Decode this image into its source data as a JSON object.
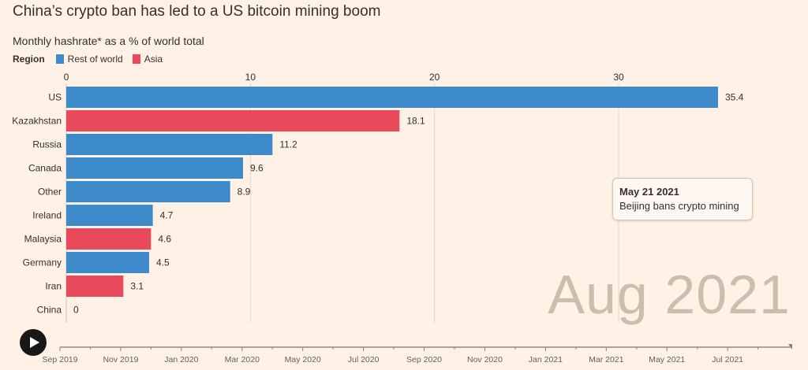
{
  "title": "China’s crypto ban has led to a US bitcoin mining boom",
  "subtitle": "Monthly hashrate* as a % of world total",
  "legend": {
    "title": "Region",
    "items": [
      {
        "label": "Rest of world",
        "color": "#3d8bcb"
      },
      {
        "label": "Asia",
        "color": "#e84a5c"
      }
    ]
  },
  "tooltip": {
    "date": "May 21 2021",
    "text": "Beijing bans crypto mining"
  },
  "current_date": "Aug 2021",
  "timeline": {
    "labels": [
      "Sep 2019",
      "Nov 2019",
      "Jan 2020",
      "Mar 2020",
      "May 2020",
      "Jul 2020",
      "Sep 2020",
      "Nov 2020",
      "Jan 2021",
      "Mar 2021",
      "May 2021",
      "Jul 2021"
    ],
    "progress": 1.0
  },
  "chart_data": {
    "type": "bar",
    "orientation": "horizontal",
    "title": "China’s crypto ban has led to a US bitcoin mining boom",
    "ylabel": "Monthly hashrate* as a % of world total",
    "xlim": [
      0,
      35.4
    ],
    "xticks": [
      0,
      10,
      20,
      30
    ],
    "grid": true,
    "categories": [
      "US",
      "Kazakhstan",
      "Russia",
      "Canada",
      "Other",
      "Ireland",
      "Malaysia",
      "Germany",
      "Iran",
      "China"
    ],
    "values": [
      35.4,
      18.1,
      11.2,
      9.6,
      8.9,
      4.7,
      4.6,
      4.5,
      3.1,
      0
    ],
    "regions": [
      "Rest of world",
      "Asia",
      "Rest of world",
      "Rest of world",
      "Rest of world",
      "Rest of world",
      "Asia",
      "Rest of world",
      "Asia",
      "Asia"
    ]
  }
}
